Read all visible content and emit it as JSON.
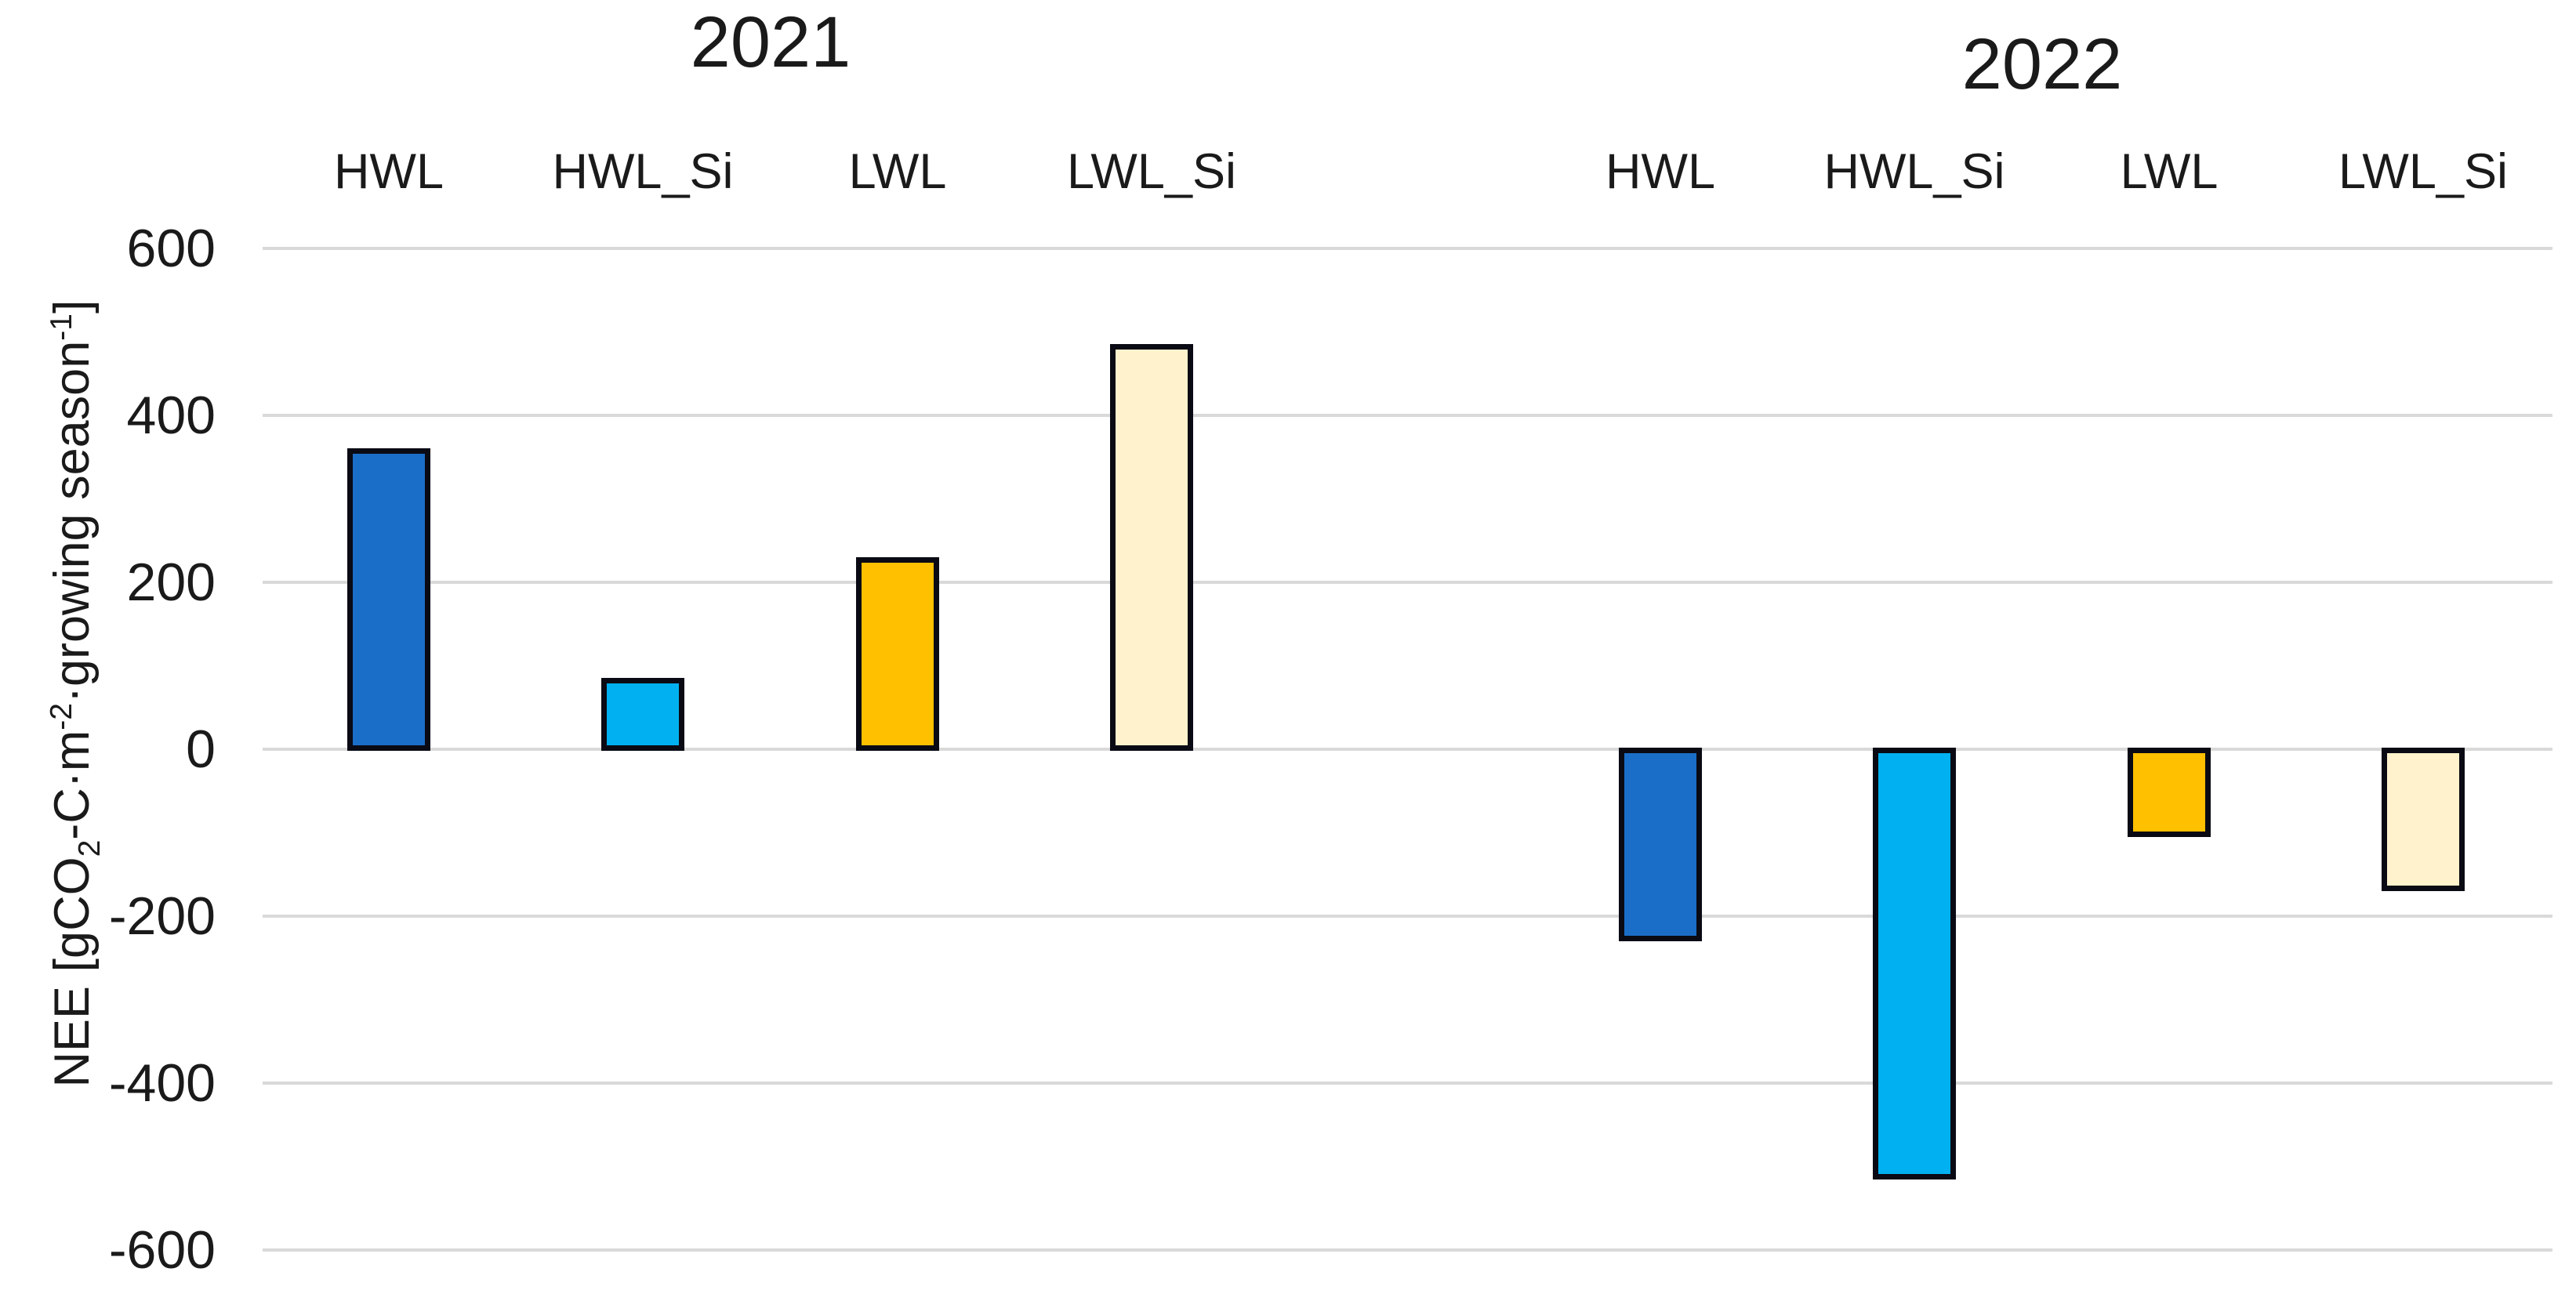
{
  "chart_data": {
    "type": "bar",
    "group_titles": [
      "2021",
      "2022"
    ],
    "categories": [
      "HWL",
      "HWL_Si",
      "LWL",
      "LWL_Si"
    ],
    "series": [
      {
        "name": "2021",
        "values": [
          360,
          85,
          230,
          485
        ]
      },
      {
        "name": "2022",
        "values": [
          -230,
          -515,
          -105,
          -170
        ]
      }
    ],
    "ylabel": "NEE [gCO2-C·m-2·growing season-1]",
    "ylabel_parts": {
      "p1": "NEE [gCO",
      "s1": "2",
      "p2": "-C·m",
      "s2": "-2",
      "p3": "·growing season",
      "s3": "-1",
      "p4": "]"
    },
    "yticks": [
      600,
      400,
      200,
      0,
      -200,
      -400,
      -600
    ],
    "ylim": [
      -660,
      650
    ],
    "grid": "horizontal",
    "legend": "none",
    "colors": {
      "HWL": "#1B6EC8",
      "HWL_Si": "#00B0F0",
      "LWL": "#FFC000",
      "LWL_Si": "#FFF2CC"
    },
    "bar_border_color": "#0A0A14",
    "gridline_color": "#D9D9D9",
    "text_color": "#1A1A1A",
    "background": "#FFFFFF"
  }
}
